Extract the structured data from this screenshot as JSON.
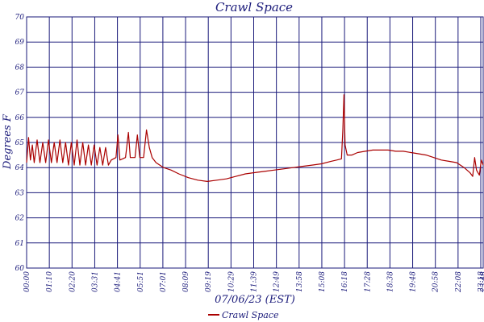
{
  "chart_data": {
    "type": "line",
    "title": "Crawl Space",
    "xlabel": "07/06/23 (EST)",
    "ylabel": "Degrees F",
    "ylim": [
      60,
      70
    ],
    "yticks": [
      "60",
      "61",
      "62",
      "63",
      "64",
      "65",
      "66",
      "67",
      "68",
      "69",
      "70"
    ],
    "xticks": [
      "00:00",
      "01:10",
      "02:20",
      "03:31",
      "04:41",
      "05:51",
      "07:01",
      "08:09",
      "09:19",
      "10:29",
      "11:39",
      "12:49",
      "13:58",
      "15:08",
      "16:18",
      "17:28",
      "18:38",
      "19:48",
      "20:58",
      "22:08",
      "23:18",
      "23:48"
    ],
    "xrange_hours": [
      0,
      24
    ],
    "grid": true,
    "legend": "bottom-center",
    "colors": {
      "line": "#aa0000",
      "grid": "#1a1a7a",
      "text": "#1a1a7a"
    },
    "series": [
      {
        "name": "Crawl Space",
        "points": [
          [
            0.0,
            64.2
          ],
          [
            0.1,
            65.2
          ],
          [
            0.2,
            64.3
          ],
          [
            0.3,
            64.9
          ],
          [
            0.4,
            64.2
          ],
          [
            0.55,
            65.1
          ],
          [
            0.7,
            64.2
          ],
          [
            0.85,
            65.0
          ],
          [
            1.0,
            64.2
          ],
          [
            1.15,
            65.1
          ],
          [
            1.3,
            64.2
          ],
          [
            1.45,
            65.0
          ],
          [
            1.6,
            64.2
          ],
          [
            1.75,
            65.1
          ],
          [
            1.9,
            64.2
          ],
          [
            2.05,
            65.0
          ],
          [
            2.2,
            64.1
          ],
          [
            2.35,
            65.0
          ],
          [
            2.5,
            64.1
          ],
          [
            2.65,
            65.1
          ],
          [
            2.8,
            64.1
          ],
          [
            2.95,
            65.0
          ],
          [
            3.1,
            64.1
          ],
          [
            3.25,
            64.9
          ],
          [
            3.4,
            64.1
          ],
          [
            3.55,
            64.9
          ],
          [
            3.7,
            64.1
          ],
          [
            3.85,
            64.8
          ],
          [
            4.0,
            64.1
          ],
          [
            4.15,
            64.8
          ],
          [
            4.3,
            64.1
          ],
          [
            4.45,
            64.3
          ],
          [
            4.7,
            64.4
          ],
          [
            4.8,
            65.3
          ],
          [
            4.9,
            64.3
          ],
          [
            5.2,
            64.4
          ],
          [
            5.35,
            65.4
          ],
          [
            5.45,
            64.4
          ],
          [
            5.7,
            64.4
          ],
          [
            5.82,
            65.3
          ],
          [
            5.95,
            64.4
          ],
          [
            6.15,
            64.4
          ],
          [
            6.3,
            65.5
          ],
          [
            6.45,
            64.8
          ],
          [
            6.6,
            64.4
          ],
          [
            6.8,
            64.2
          ],
          [
            7.2,
            64.0
          ],
          [
            7.6,
            63.9
          ],
          [
            8.0,
            63.75
          ],
          [
            8.5,
            63.6
          ],
          [
            9.0,
            63.5
          ],
          [
            9.5,
            63.45
          ],
          [
            10.0,
            63.5
          ],
          [
            10.5,
            63.55
          ],
          [
            11.0,
            63.65
          ],
          [
            11.5,
            63.75
          ],
          [
            12.0,
            63.8
          ],
          [
            12.5,
            63.85
          ],
          [
            13.0,
            63.9
          ],
          [
            13.5,
            63.95
          ],
          [
            14.0,
            64.0
          ],
          [
            14.5,
            64.05
          ],
          [
            15.0,
            64.1
          ],
          [
            15.5,
            64.15
          ],
          [
            16.0,
            64.25
          ],
          [
            16.3,
            64.3
          ],
          [
            16.55,
            64.35
          ],
          [
            16.62,
            65.5
          ],
          [
            16.68,
            66.9
          ],
          [
            16.74,
            64.9
          ],
          [
            16.85,
            64.5
          ],
          [
            17.1,
            64.5
          ],
          [
            17.4,
            64.6
          ],
          [
            17.8,
            64.65
          ],
          [
            18.2,
            64.7
          ],
          [
            18.6,
            64.7
          ],
          [
            19.0,
            64.7
          ],
          [
            19.4,
            64.65
          ],
          [
            19.8,
            64.65
          ],
          [
            20.2,
            64.6
          ],
          [
            20.6,
            64.55
          ],
          [
            21.0,
            64.5
          ],
          [
            21.4,
            64.4
          ],
          [
            21.8,
            64.3
          ],
          [
            22.2,
            64.25
          ],
          [
            22.6,
            64.2
          ],
          [
            23.0,
            64.0
          ],
          [
            23.3,
            63.8
          ],
          [
            23.45,
            63.65
          ],
          [
            23.55,
            64.4
          ],
          [
            23.65,
            63.9
          ],
          [
            23.8,
            63.7
          ],
          [
            23.9,
            64.3
          ],
          [
            24.0,
            64.1
          ]
        ]
      }
    ]
  }
}
